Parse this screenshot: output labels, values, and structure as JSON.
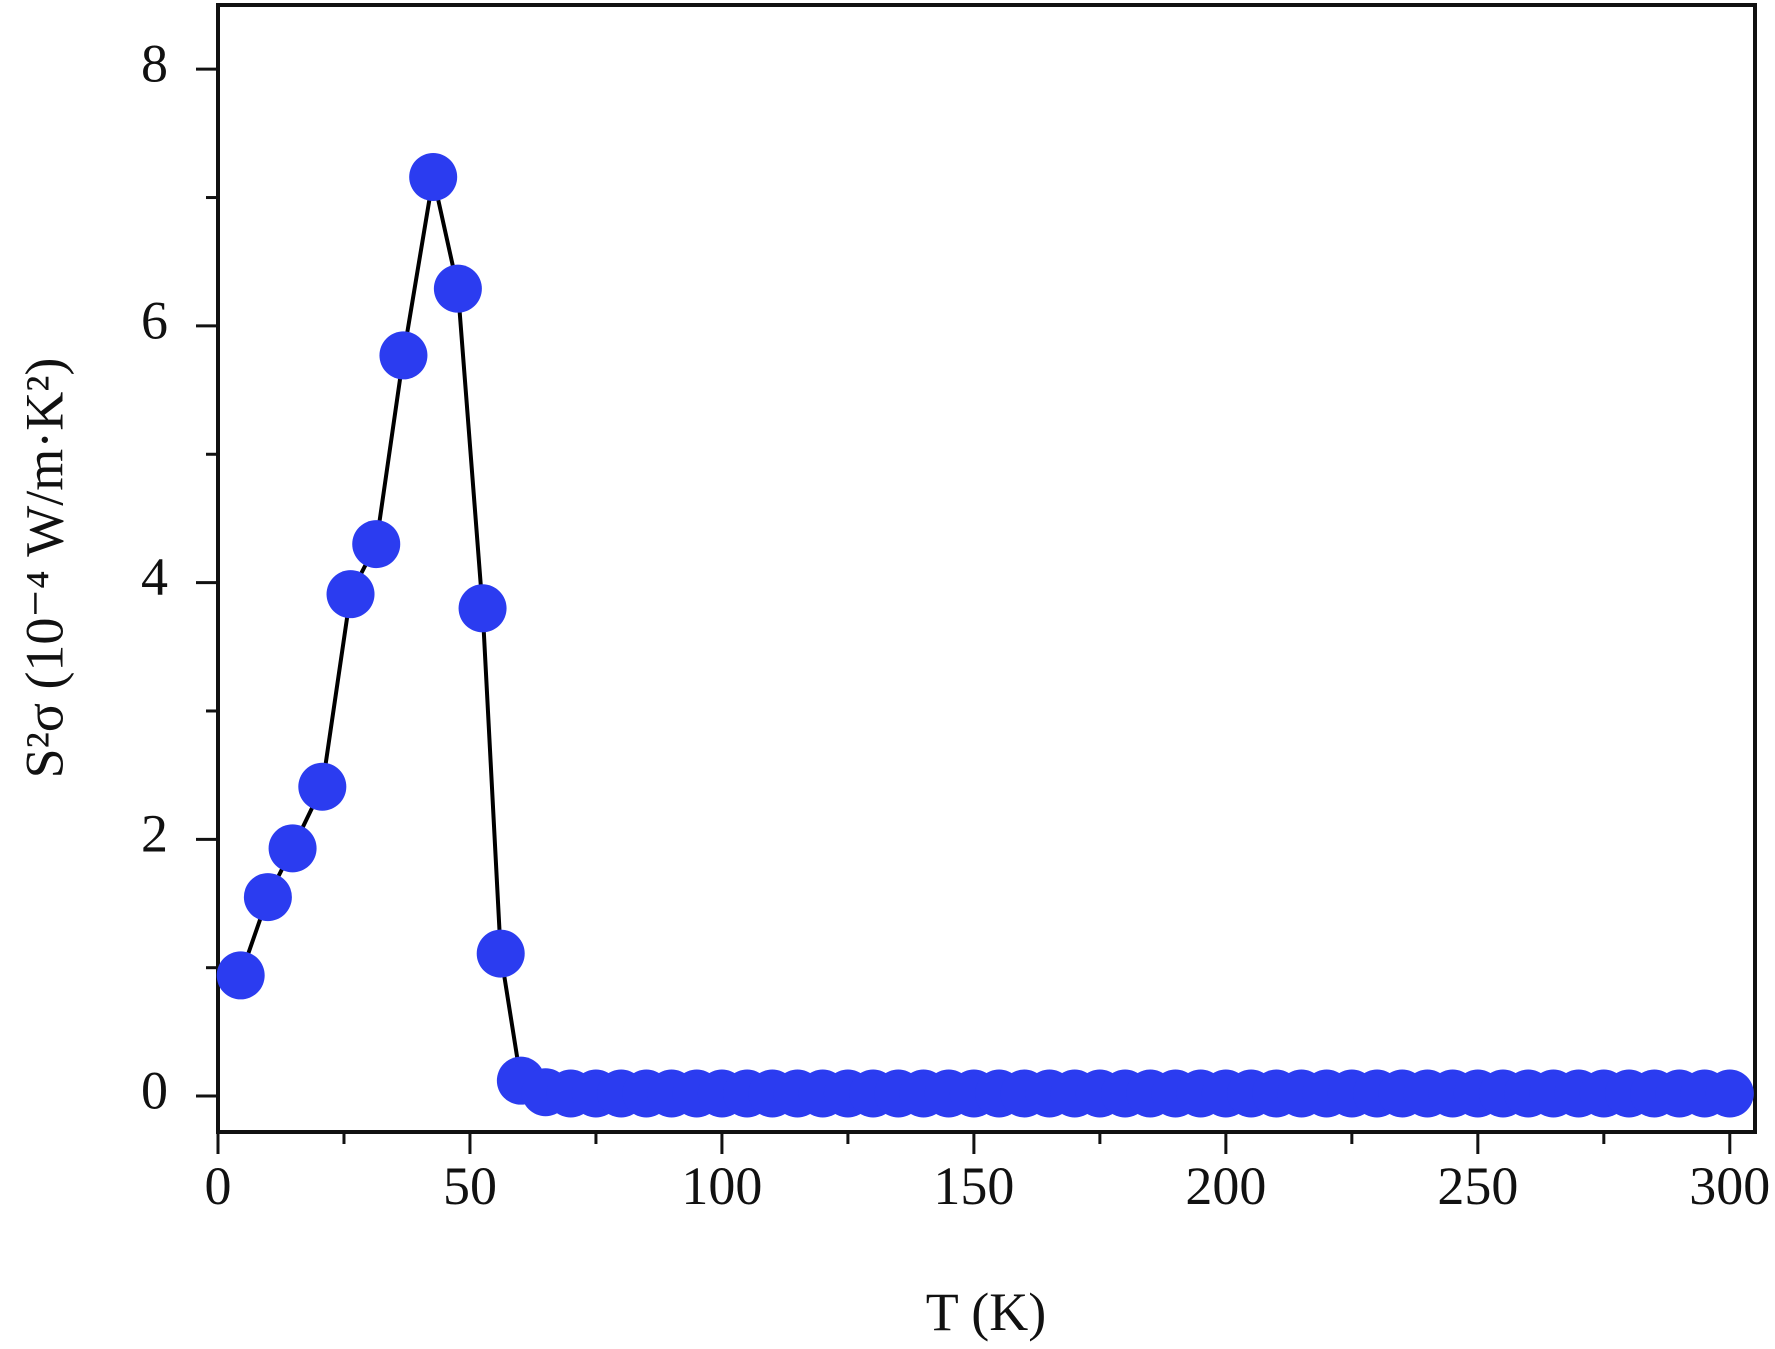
{
  "chart_data": {
    "type": "line",
    "x_label": "T (K)",
    "y_label": "S²σ (10⁻⁴ W/m·K²)",
    "x": [
      4.5,
      9.9,
      14.8,
      20.7,
      26.3,
      31.4,
      36.8,
      42.7,
      47.6,
      52.5,
      56.1,
      60.1,
      65,
      70,
      75,
      80,
      85,
      90,
      95,
      100,
      105,
      110,
      115,
      120,
      125,
      130,
      135,
      140,
      145,
      150,
      155,
      160,
      165,
      170,
      175,
      180,
      185,
      190,
      195,
      200,
      205,
      210,
      215,
      220,
      225,
      230,
      235,
      240,
      245,
      250,
      255,
      260,
      265,
      270,
      275,
      280,
      285,
      290,
      295,
      300
    ],
    "series": [
      {
        "color": "#2b3cf0",
        "values": [
          0.94,
          1.55,
          1.93,
          2.41,
          3.91,
          4.3,
          5.77,
          7.16,
          6.29,
          3.8,
          1.11,
          0.12,
          0.03,
          0.02,
          0.02,
          0.02,
          0.02,
          0.02,
          0.02,
          0.02,
          0.02,
          0.02,
          0.02,
          0.02,
          0.02,
          0.02,
          0.02,
          0.02,
          0.02,
          0.02,
          0.02,
          0.02,
          0.02,
          0.02,
          0.02,
          0.02,
          0.02,
          0.02,
          0.02,
          0.02,
          0.02,
          0.02,
          0.02,
          0.02,
          0.02,
          0.02,
          0.02,
          0.02,
          0.02,
          0.02,
          0.02,
          0.02,
          0.02,
          0.02,
          0.02,
          0.02,
          0.02,
          0.02,
          0.02,
          0.02
        ]
      }
    ],
    "line_color": "#000000",
    "xlim": [
      0,
      305
    ],
    "ylim": [
      -0.28,
      8.5
    ],
    "xticks": [
      0,
      50,
      100,
      150,
      200,
      250,
      300
    ],
    "xminorticks": [
      25,
      75,
      125,
      175,
      225,
      275
    ],
    "yticks": [
      0,
      2,
      4,
      6,
      8
    ],
    "yminorticks": [
      1,
      3,
      5,
      7
    ],
    "grid": false
  }
}
